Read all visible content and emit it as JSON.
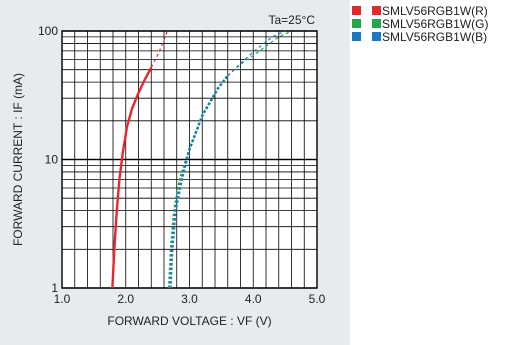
{
  "chart_data": {
    "type": "line",
    "annotation": "Ta=25°C",
    "xlabel": "FORWARD VOLTAGE : VF (V)",
    "ylabel": "FORWARD CURRENT : IF (mA)",
    "xlim": [
      1.0,
      5.0
    ],
    "ylim": [
      1,
      100
    ],
    "yscale": "log",
    "grid": true,
    "legend_position": "right",
    "xticks": [
      "1.0",
      "2.0",
      "3.0",
      "4.0",
      "5.0"
    ],
    "yticks": [
      "1",
      "10",
      "100"
    ],
    "series": [
      {
        "name": "SMLV56RGB1W(R)",
        "color": "#e8262c",
        "x": [
          1.79,
          1.82,
          1.86,
          1.9,
          1.95,
          2.02,
          2.1,
          2.2,
          2.3,
          2.4
        ],
        "y": [
          1,
          2,
          4,
          7,
          11,
          18,
          25,
          33,
          42,
          52
        ],
        "extrapolated": {
          "x": [
            2.4,
            2.5,
            2.58,
            2.65
          ],
          "y": [
            52,
            65,
            80,
            100
          ]
        }
      },
      {
        "name": "SMLV56RGB1W(G)",
        "color": "#21a84a",
        "x": [
          2.68,
          2.71,
          2.76,
          2.85,
          3.0,
          3.2,
          3.45,
          3.6
        ],
        "y": [
          1,
          2,
          4,
          7,
          12,
          22,
          36,
          45
        ],
        "extrapolated": {
          "x": [
            3.6,
            3.8,
            4.1,
            4.4,
            4.6
          ],
          "y": [
            45,
            55,
            70,
            90,
            100
          ]
        }
      },
      {
        "name": "SMLV56RGB1W(B)",
        "color": "#1c78c0",
        "x": [
          2.7,
          2.73,
          2.78,
          2.88,
          3.0,
          3.2,
          3.45,
          3.6
        ],
        "y": [
          1,
          2,
          4,
          7,
          12,
          22,
          36,
          45
        ],
        "extrapolated": {
          "x": [
            3.6,
            3.8,
            4.05,
            4.3,
            4.5
          ],
          "y": [
            45,
            56,
            72,
            90,
            100
          ]
        }
      }
    ]
  },
  "legend": [
    {
      "label": "SMLV56RGB1W(R)",
      "color": "#e8262c"
    },
    {
      "label": "SMLV56RGB1W(G)",
      "color": "#21a84a"
    },
    {
      "label": "SMLV56RGB1W(B)",
      "color": "#1c78c0"
    }
  ]
}
